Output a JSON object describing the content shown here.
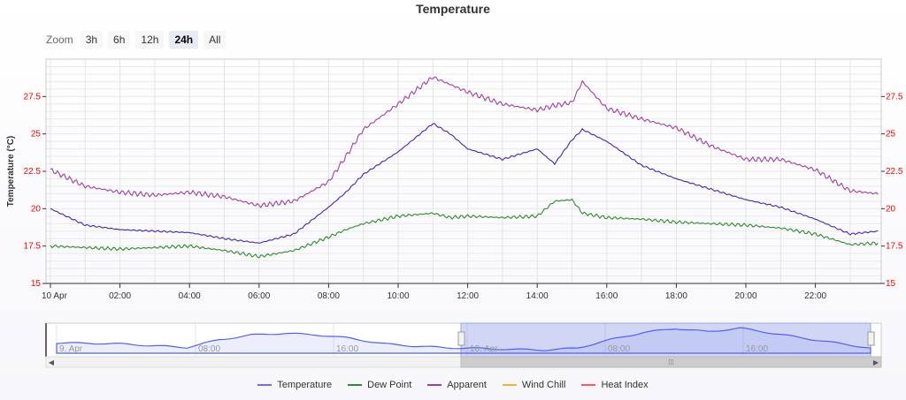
{
  "title": "Temperature",
  "zoom": {
    "label": "Zoom",
    "buttons": [
      {
        "label": "3h",
        "active": false
      },
      {
        "label": "6h",
        "active": false
      },
      {
        "label": "12h",
        "active": false
      },
      {
        "label": "24h",
        "active": true
      },
      {
        "label": "All",
        "active": false
      }
    ]
  },
  "chart_data": {
    "type": "line",
    "title": "Temperature",
    "ylabel": "Temperature (°C)",
    "ylim": [
      15,
      30
    ],
    "yticks": [
      "15",
      "17.5",
      "20",
      "22.5",
      "25",
      "27.5"
    ],
    "xticks": [
      "10 Apr",
      "02:00",
      "04:00",
      "06:00",
      "08:00",
      "10:00",
      "12:00",
      "14:00",
      "16:00",
      "18:00",
      "20:00",
      "22:00"
    ],
    "x_hours": [
      0,
      1,
      2,
      3,
      4,
      5,
      6,
      7,
      8,
      8.5,
      9,
      10,
      11,
      11.5,
      12,
      13,
      14,
      14.5,
      15,
      15.3,
      16,
      17,
      18,
      19,
      20,
      21,
      22,
      23,
      23.8
    ],
    "series": [
      {
        "name": "Temperature",
        "color": "#4a24a8",
        "values": [
          20.0,
          18.9,
          18.6,
          18.5,
          18.4,
          18.0,
          17.7,
          18.3,
          20.1,
          21.1,
          22.3,
          23.8,
          25.7,
          25.0,
          24.0,
          23.3,
          24.0,
          23.0,
          24.6,
          25.3,
          24.5,
          22.9,
          22.0,
          21.3,
          20.6,
          20.1,
          19.3,
          18.3,
          18.5
        ]
      },
      {
        "name": "Dew Point",
        "color": "#2e8b2e",
        "values": [
          17.5,
          17.4,
          17.3,
          17.4,
          17.5,
          17.2,
          16.8,
          17.2,
          18.1,
          18.6,
          19.0,
          19.5,
          19.7,
          19.4,
          19.5,
          19.4,
          19.5,
          20.5,
          20.6,
          19.7,
          19.4,
          19.3,
          19.1,
          19.0,
          18.9,
          18.7,
          18.3,
          17.6,
          17.7
        ]
      },
      {
        "name": "Apparent",
        "color": "#a040a0",
        "values": [
          22.6,
          21.5,
          21.1,
          20.9,
          21.1,
          20.8,
          20.2,
          20.5,
          21.8,
          23.5,
          25.3,
          27.0,
          28.8,
          28.3,
          27.8,
          27.0,
          26.6,
          26.9,
          27.1,
          28.5,
          26.7,
          26.0,
          25.4,
          24.2,
          23.3,
          23.3,
          22.6,
          21.2,
          21.0
        ]
      },
      {
        "name": "Wind Chill",
        "color": "#f5b041",
        "values": []
      },
      {
        "name": "Heat Index",
        "color": "#ff5a5a",
        "values": []
      }
    ]
  },
  "navigator": {
    "labels": [
      "9. Apr",
      "08:00",
      "16:00",
      "10. Apr",
      "08:00",
      "16:00"
    ],
    "series_values": [
      20.0,
      19.9,
      19.7,
      19.1,
      18.6,
      21.0,
      22.5,
      23.0,
      22.5,
      21.5,
      19.8,
      19.0,
      18.5,
      18.3,
      18.0,
      17.8,
      18.4,
      21.0,
      23.2,
      24.5,
      23.5,
      24.6,
      23.0,
      21.4,
      19.9,
      18.4
    ],
    "selection_fraction": [
      0.5,
      1.0
    ]
  },
  "legend": [
    {
      "label": "Temperature",
      "color": "#6672f0"
    },
    {
      "label": "Dew Point",
      "color": "#2e8b2e"
    },
    {
      "label": "Apparent",
      "color": "#a040a0"
    },
    {
      "label": "Wind Chill",
      "color": "#f5b041"
    },
    {
      "label": "Heat Index",
      "color": "#ff5a5a"
    }
  ]
}
